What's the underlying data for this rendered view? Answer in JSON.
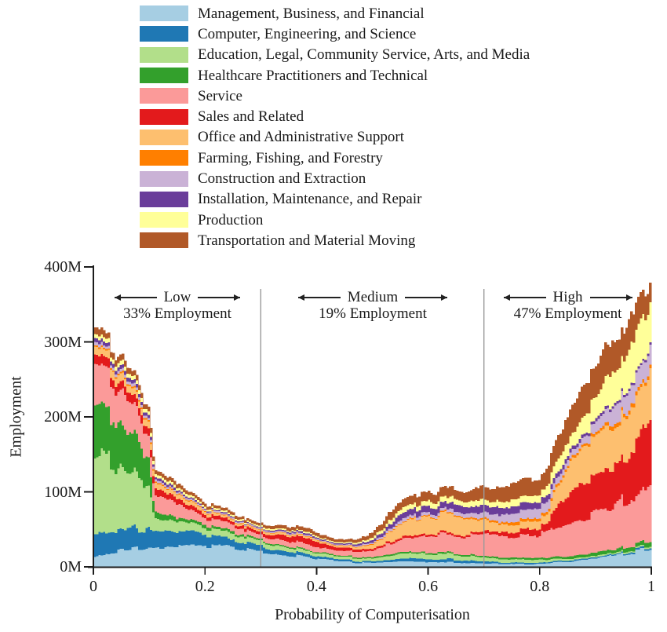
{
  "figure": {
    "background": "#ffffff",
    "text_color": "#1a1a1a",
    "separator_color": "#9a9a9a"
  },
  "icons": {
    "left_arrow": "←",
    "right_arrow": "→"
  },
  "chart_data": {
    "type": "area",
    "stacked": true,
    "title": "",
    "xlabel": "Probability of Computerisation",
    "ylabel": "Employment",
    "xlim": [
      0,
      1
    ],
    "ylim": [
      0,
      400
    ],
    "y_unit": "millions (M)",
    "x_ticks": [
      "0",
      "0.2",
      "0.4",
      "0.6",
      "0.8",
      "1"
    ],
    "y_ticks": [
      "0M",
      "100M",
      "200M",
      "300M",
      "400M"
    ],
    "legend_position": "top",
    "grid": "off",
    "separators_x": [
      0.3,
      0.7
    ],
    "annotations": {
      "low": {
        "label": "Low",
        "sublabel": "33% Employment",
        "x_range": [
          0,
          0.3
        ]
      },
      "medium": {
        "label": "Medium",
        "sublabel": "19% Employment",
        "x_range": [
          0.3,
          0.7
        ]
      },
      "high": {
        "label": "High",
        "sublabel": "47% Employment",
        "x_range": [
          0.7,
          1
        ]
      }
    },
    "x": [
      0,
      0.02,
      0.05,
      0.08,
      0.1,
      0.105,
      0.11,
      0.13,
      0.15,
      0.18,
      0.2,
      0.23,
      0.26,
      0.3,
      0.33,
      0.36,
      0.39,
      0.42,
      0.45,
      0.47,
      0.5,
      0.53,
      0.55,
      0.57,
      0.6,
      0.63,
      0.66,
      0.68,
      0.7,
      0.73,
      0.76,
      0.79,
      0.815,
      0.825,
      0.84,
      0.86,
      0.88,
      0.9,
      0.93,
      0.96,
      0.98,
      1.0
    ],
    "series": [
      {
        "name": "Management, Business, and Financial",
        "color": "#a6cee3",
        "values": [
          12,
          18,
          22,
          25,
          26,
          26,
          26,
          27,
          27,
          28,
          28,
          27,
          25,
          22,
          18,
          15,
          12,
          9,
          7,
          6,
          5.5,
          6,
          7,
          7,
          7,
          7,
          6,
          5,
          5,
          4.5,
          4,
          4,
          5,
          6,
          7,
          8,
          9,
          11,
          15,
          19,
          22,
          25
        ]
      },
      {
        "name": "Computer, Engineering, and Science",
        "color": "#1f78b4",
        "values": [
          30,
          30,
          28,
          26,
          25,
          24,
          24,
          22,
          20,
          17,
          14,
          11,
          9,
          7,
          6,
          5,
          4,
          3,
          2.5,
          2,
          2,
          3,
          4,
          4,
          4,
          4,
          3.5,
          3,
          2.5,
          2,
          1.8,
          1.5,
          1.5,
          1.5,
          1.5,
          1.5,
          1.5,
          1.5,
          1.5,
          1.8,
          2,
          2
        ]
      },
      {
        "name": "Education, Legal, Community Service, Arts, and Media",
        "color": "#b2df8a",
        "values": [
          105,
          100,
          88,
          75,
          62,
          40,
          18,
          15,
          13,
          11,
          9,
          9,
          8,
          6,
          5.5,
          5,
          4.5,
          4,
          3.5,
          3.5,
          4,
          5,
          6,
          6.5,
          7,
          7,
          6.5,
          6,
          5.5,
          5,
          4.5,
          4,
          3.5,
          3,
          2.5,
          2.2,
          2,
          2,
          2,
          2,
          2,
          2
        ]
      },
      {
        "name": "Healthcare Practitioners and Technical",
        "color": "#33a02c",
        "values": [
          65,
          62,
          55,
          45,
          36,
          20,
          9,
          7,
          5,
          4,
          4,
          3,
          3,
          2,
          2,
          1.8,
          1.6,
          1.5,
          1.5,
          1.5,
          1.5,
          2,
          2,
          2,
          2,
          2,
          2,
          2,
          2,
          2,
          2.2,
          2.5,
          2.5,
          3,
          3,
          3.5,
          3.5,
          4,
          4.5,
          5,
          5.5,
          6
        ]
      },
      {
        "name": "Service",
        "color": "#fb9a99",
        "values": [
          62,
          55,
          45,
          36,
          30,
          27,
          24,
          20,
          17,
          13,
          10,
          9,
          8,
          6,
          7,
          7,
          7,
          6,
          6,
          7,
          9,
          14,
          18,
          20,
          22,
          24,
          25,
          25,
          28,
          30,
          30,
          31,
          32,
          38,
          42,
          46,
          50,
          52,
          54,
          65,
          75,
          90
        ]
      },
      {
        "name": "Sales and Related",
        "color": "#e31a1c",
        "values": [
          14,
          13,
          12,
          11,
          10,
          10,
          9,
          8,
          7,
          6,
          5,
          4.5,
          4,
          4,
          6,
          8,
          8,
          5,
          4,
          3,
          3,
          3,
          3,
          3,
          2.5,
          2.5,
          3,
          3,
          3.5,
          5,
          7,
          9,
          10,
          28,
          35,
          42,
          45,
          48,
          52,
          65,
          78,
          95
        ]
      },
      {
        "name": "Office and Administrative Support",
        "color": "#fdbf6f",
        "values": [
          10,
          10,
          10,
          9,
          9,
          8,
          8,
          7,
          6,
          5,
          4,
          3.5,
          3,
          2.5,
          2.5,
          2.5,
          2.5,
          2,
          2,
          3,
          6,
          12,
          18,
          20,
          22,
          24,
          22,
          18,
          14,
          11,
          10,
          10,
          12,
          22,
          30,
          42,
          48,
          50,
          52,
          55,
          58,
          62
        ]
      },
      {
        "name": "Farming, Fishing, and Forestry",
        "color": "#ff7f00",
        "values": [
          2,
          2,
          2,
          2,
          2,
          2,
          1.5,
          1.5,
          1,
          1,
          1,
          0.8,
          0.8,
          0.7,
          0.7,
          0.7,
          0.6,
          0.6,
          0.5,
          0.5,
          0.8,
          1,
          1.2,
          1.3,
          1.4,
          1.5,
          1.5,
          1.8,
          2,
          3,
          4,
          4,
          4,
          3.5,
          3,
          3,
          3,
          4,
          5,
          5,
          5,
          5
        ]
      },
      {
        "name": "Construction and Extraction",
        "color": "#cab2d6",
        "values": [
          4,
          4,
          4,
          4,
          3,
          3,
          3,
          2.5,
          2,
          2,
          2,
          1.7,
          1.7,
          1.5,
          1.5,
          1.5,
          1.4,
          1.2,
          1.2,
          1.5,
          2,
          3,
          4,
          4,
          4,
          4.5,
          5,
          6,
          7,
          9,
          11,
          12,
          12,
          10,
          8,
          8,
          10,
          14,
          22,
          25,
          25,
          25
        ]
      },
      {
        "name": "Installation, Maintenance, and Repair",
        "color": "#6a3d9a",
        "values": [
          5,
          5,
          5,
          4,
          4,
          4,
          3,
          3,
          2.5,
          2,
          1.5,
          1.5,
          1.2,
          1.2,
          1.5,
          2,
          2,
          1.5,
          1.5,
          2,
          3,
          6,
          8,
          9,
          9,
          9,
          9,
          9,
          9.5,
          9.5,
          9.5,
          9,
          8,
          7,
          6,
          5,
          4.5,
          4,
          3.5,
          3,
          3,
          3
        ]
      },
      {
        "name": "Production",
        "color": "#ffff99",
        "values": [
          6,
          6,
          6,
          5,
          5,
          5,
          4,
          4,
          3.5,
          3,
          2.5,
          2.5,
          2.3,
          2,
          2,
          2,
          2,
          1.5,
          1.5,
          2,
          3,
          5,
          6,
          7,
          7,
          7.5,
          7,
          7,
          7.5,
          8,
          9,
          10,
          12,
          16,
          18,
          20,
          22,
          30,
          44,
          50,
          53,
          57
        ]
      },
      {
        "name": "Transportation and Material Moving",
        "color": "#b15928",
        "values": [
          8,
          8,
          7,
          7,
          6,
          6,
          5,
          5,
          4.5,
          4,
          3.5,
          3,
          3,
          3,
          4,
          4.5,
          4.5,
          4,
          3.5,
          4,
          6,
          9,
          11,
          12,
          12,
          13,
          13,
          14,
          16,
          20,
          22,
          22,
          22,
          26,
          30,
          35,
          40,
          42,
          46,
          40,
          32,
          25
        ]
      }
    ]
  }
}
